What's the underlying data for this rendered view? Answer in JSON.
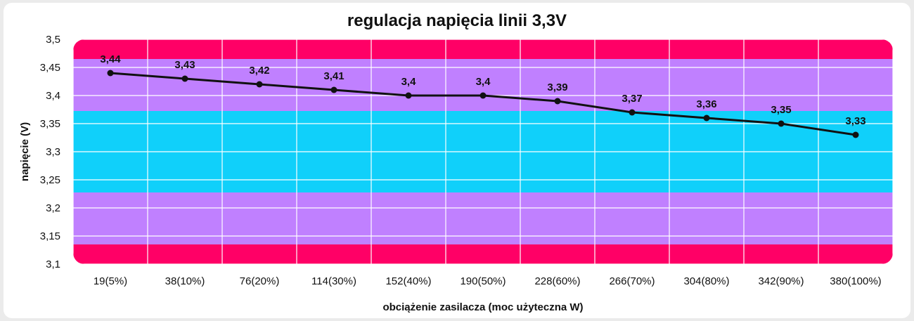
{
  "chart_data": {
    "type": "line",
    "title": "regulacja napięcia linii 3,3V",
    "xlabel": "obciążenie zasilacza (moc użyteczna W)",
    "ylabel": "napięcie (V)",
    "categories": [
      "19(5%)",
      "38(10%)",
      "76(20%)",
      "114(30%)",
      "152(40%)",
      "190(50%)",
      "228(60%)",
      "266(70%)",
      "304(80%)",
      "342(90%)",
      "380(100%)"
    ],
    "series": [
      {
        "values": [
          3.44,
          3.43,
          3.42,
          3.41,
          3.4,
          3.4,
          3.39,
          3.37,
          3.36,
          3.35,
          3.33
        ],
        "labels": [
          "3,44",
          "3,43",
          "3,42",
          "3,41",
          "3,4",
          "3,4",
          "3,39",
          "3,37",
          "3,36",
          "3,35",
          "3,33"
        ],
        "color": "#111111"
      }
    ],
    "ylim": [
      3.1,
      3.5
    ],
    "yticks": [
      3.1,
      3.15,
      3.2,
      3.25,
      3.3,
      3.35,
      3.4,
      3.45,
      3.5
    ],
    "ytick_labels": [
      "3,1",
      "3,15",
      "3,2",
      "3,25",
      "3,3",
      "3,35",
      "3,4",
      "3,45",
      "3,5"
    ],
    "grid": true,
    "legend": "none",
    "bands": [
      {
        "from": 3.1,
        "to": 3.135,
        "color": "#ff0066"
      },
      {
        "from": 3.135,
        "to": 3.2275,
        "color": "#c080ff"
      },
      {
        "from": 3.2275,
        "to": 3.3725,
        "color": "#10d0fa"
      },
      {
        "from": 3.3725,
        "to": 3.465,
        "color": "#c080ff"
      },
      {
        "from": 3.465,
        "to": 3.5,
        "color": "#ff0066"
      }
    ]
  }
}
